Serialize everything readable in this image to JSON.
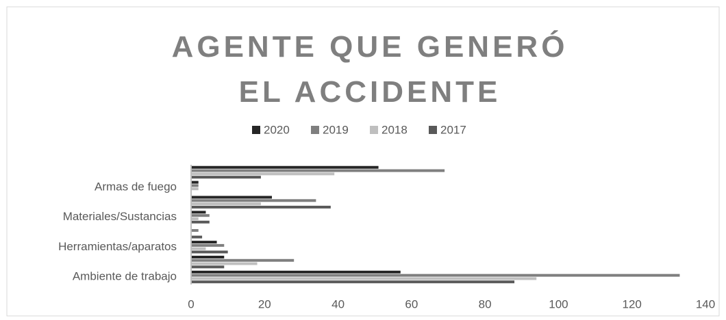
{
  "chart_data": {
    "type": "bar",
    "orientation": "horizontal",
    "title": "AGENTE QUE GENERÓ EL ACCIDENTE",
    "categories": [
      "Ambiente de trabajo",
      null,
      "Herramientas/aparatos",
      null,
      "Materiales/Sustancias",
      null,
      "Armas de fuego",
      null
    ],
    "series": [
      {
        "name": "2020",
        "color": "#262626",
        "values": [
          57,
          9,
          7,
          0,
          4,
          22,
          2,
          51
        ]
      },
      {
        "name": "2019",
        "color": "#7f7f7f",
        "values": [
          133,
          28,
          9,
          2,
          5,
          34,
          2,
          69
        ]
      },
      {
        "name": "2018",
        "color": "#bfbfbf",
        "values": [
          94,
          18,
          4,
          0,
          2,
          19,
          2,
          39
        ]
      },
      {
        "name": "2017",
        "color": "#595959",
        "values": [
          88,
          9,
          10,
          3,
          5,
          38,
          0,
          19
        ]
      }
    ],
    "xlim": [
      0,
      140
    ],
    "xticks": [
      0,
      20,
      40,
      60,
      80,
      100,
      120,
      140
    ],
    "grid": false,
    "legend": "top"
  }
}
